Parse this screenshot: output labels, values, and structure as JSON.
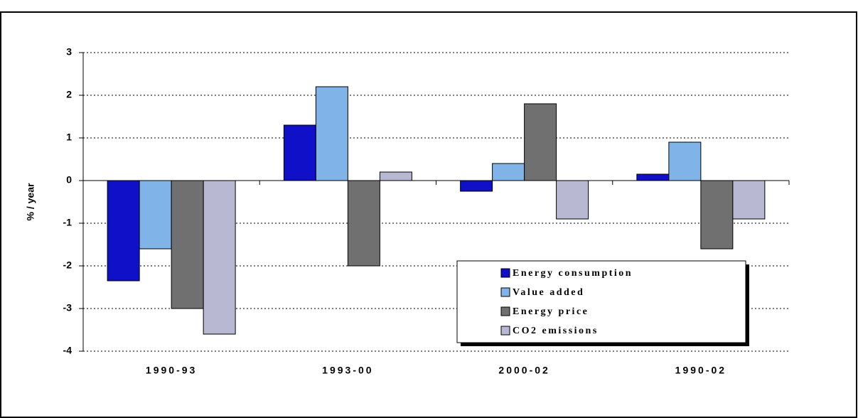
{
  "chart_data": {
    "type": "bar",
    "categories": [
      "1990-93",
      "1993-00",
      "2000-02",
      "1990-02"
    ],
    "series": [
      {
        "name": "Energy consumption",
        "color": "#1010c8",
        "values": [
          -2.35,
          1.3,
          -0.25,
          0.15
        ]
      },
      {
        "name": "Value added",
        "color": "#80b4e8",
        "values": [
          -1.6,
          2.2,
          0.4,
          0.9
        ]
      },
      {
        "name": "Energy price",
        "color": "#707070",
        "values": [
          -3.0,
          -2.0,
          1.8,
          -1.6
        ]
      },
      {
        "name": "CO2 emissions",
        "color": "#b8b8d2",
        "values": [
          -3.6,
          0.2,
          -0.9,
          -0.9
        ]
      }
    ],
    "ylabel": "% / year",
    "ylim": [
      -4,
      3
    ],
    "yticks": [
      -4,
      -3,
      -2,
      -1,
      0,
      1,
      2,
      3
    ],
    "grid": true,
    "legend": "lower right"
  }
}
